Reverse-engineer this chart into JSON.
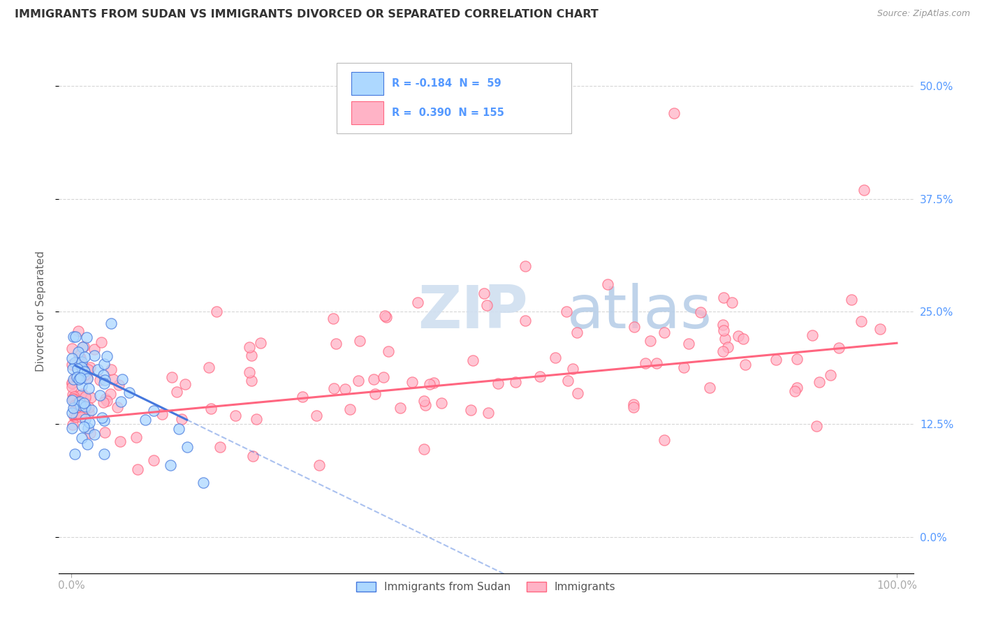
{
  "title": "IMMIGRANTS FROM SUDAN VS IMMIGRANTS DIVORCED OR SEPARATED CORRELATION CHART",
  "source": "Source: ZipAtlas.com",
  "ylabel": "Divorced or Separated",
  "watermark_zip": "ZIP",
  "watermark_atlas": "atlas",
  "legend_blue_text": "R = -0.184  N =  59",
  "legend_pink_text": "R =  0.390  N = 155",
  "legend_label_blue": "Immigrants from Sudan",
  "legend_label_pink": "Immigrants",
  "xlim": [
    0.0,
    1.0
  ],
  "ylim": [
    0.0,
    0.52
  ],
  "yticks": [
    0.0,
    0.125,
    0.25,
    0.375,
    0.5
  ],
  "ytick_labels": [
    "0.0%",
    "12.5%",
    "25.0%",
    "37.5%",
    "50.0%"
  ],
  "xtick_labels": [
    "0.0%",
    "100.0%"
  ],
  "bg_color": "#ffffff",
  "scatter_blue_color": "#add8ff",
  "scatter_pink_color": "#ffb3c6",
  "line_blue_color": "#4477dd",
  "line_pink_color": "#ff6680",
  "grid_color": "#cccccc",
  "title_color": "#333333",
  "source_color": "#999999",
  "watermark_zip_color": "#d0dff0",
  "watermark_atlas_color": "#b8cfe8",
  "tick_color": "#5599ff",
  "axis_color": "#aaaaaa"
}
